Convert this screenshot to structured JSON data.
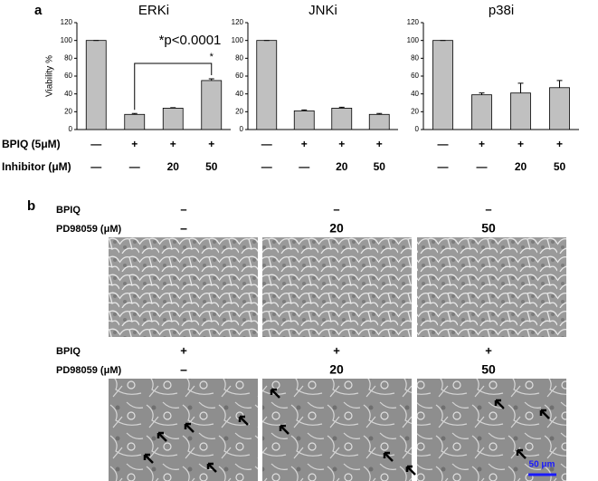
{
  "panel_labels": [
    "a",
    "b"
  ],
  "chart_data": [
    {
      "type": "bar",
      "title": "ERKi",
      "ylabel": "Viability %",
      "values": [
        100,
        17,
        24,
        55
      ],
      "errors": [
        0,
        1,
        0.5,
        2
      ],
      "color": "#c0c0c0",
      "ylim": [
        0,
        120
      ],
      "yticks": [
        0,
        20,
        40,
        60,
        80,
        100,
        120
      ],
      "annotations": [
        "*p<0.0001",
        "*"
      ]
    },
    {
      "type": "bar",
      "title": "JNKi",
      "values": [
        100,
        21,
        24,
        17
      ],
      "errors": [
        0,
        1,
        1,
        1
      ],
      "color": "#c0c0c0",
      "ylim": [
        0,
        120
      ],
      "yticks": [
        0,
        20,
        40,
        60,
        80,
        100,
        120
      ]
    },
    {
      "type": "bar",
      "title": "p38i",
      "values": [
        100,
        39,
        41,
        47
      ],
      "errors": [
        0,
        2,
        11,
        8
      ],
      "color": "#c0c0c0",
      "ylim": [
        0,
        120
      ],
      "yticks": [
        0,
        20,
        40,
        60,
        80,
        100,
        120
      ]
    }
  ],
  "conditions": {
    "rows": [
      {
        "label": "BPIQ (5μM)",
        "cells": [
          "—",
          "+",
          "+",
          "+"
        ]
      },
      {
        "label": "Inhibitor (μM)",
        "cells": [
          "—",
          "—",
          "20",
          "50"
        ]
      }
    ]
  },
  "panel_b": {
    "rows": [
      {
        "labels": [
          "BPIQ",
          "PD98059 (μM)"
        ],
        "bpiq": [
          "–",
          "–",
          "–"
        ],
        "pd": [
          "–",
          "20",
          "50"
        ]
      },
      {
        "labels": [
          "BPIQ",
          "PD98059 (μM)"
        ],
        "bpiq": [
          "+",
          "+",
          "+"
        ],
        "pd": [
          "–",
          "20",
          "50"
        ]
      }
    ],
    "scale_bar": "50 μm"
  }
}
